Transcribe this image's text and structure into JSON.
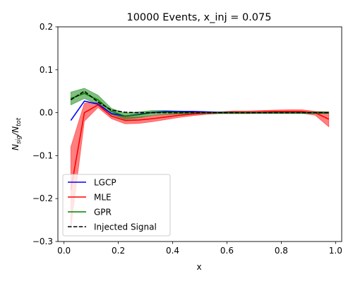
{
  "chart_data": {
    "type": "line",
    "title": "10000 Events, x_inj = 0.075",
    "xlabel": "x",
    "ylabel": {
      "base": "N",
      "sub1": "sig",
      "sep": "/N",
      "sub2": "tot"
    },
    "xlim": [
      -0.0225,
      1.0225
    ],
    "ylim": [
      -0.3,
      0.2
    ],
    "xticks": [
      0.0,
      0.2,
      0.4,
      0.6,
      0.8,
      1.0
    ],
    "xtick_labels": [
      "0.0",
      "0.2",
      "0.4",
      "0.6",
      "0.8",
      "1.0"
    ],
    "yticks": [
      -0.3,
      -0.2,
      -0.1,
      0.0,
      0.1,
      0.2
    ],
    "ytick_labels": [
      "−0.3",
      "−0.2",
      "−0.1",
      "0.0",
      "0.1",
      "0.2"
    ],
    "grid": false,
    "legend_position": "lower-left",
    "x": [
      0.025,
      0.075,
      0.125,
      0.175,
      0.225,
      0.275,
      0.325,
      0.375,
      0.425,
      0.475,
      0.525,
      0.575,
      0.625,
      0.675,
      0.725,
      0.775,
      0.825,
      0.875,
      0.925,
      0.975
    ],
    "series": [
      {
        "name": "LGCP",
        "color": "#0000ff",
        "style": "solid",
        "values": [
          -0.018,
          0.027,
          0.02,
          -0.002,
          -0.008,
          -0.004,
          0.001,
          0.003,
          0.003,
          0.003,
          0.002,
          0.001,
          0.001,
          0.0,
          0.0,
          0.0,
          0.0,
          0.0,
          0.0,
          0.0
        ]
      },
      {
        "name": "MLE",
        "color": "#ff0000",
        "style": "solid",
        "values": [
          -0.18,
          0.0,
          0.018,
          -0.008,
          -0.018,
          -0.017,
          -0.014,
          -0.01,
          -0.006,
          -0.003,
          -0.001,
          0.0,
          0.001,
          0.001,
          0.002,
          0.003,
          0.003,
          0.003,
          0.0,
          -0.015
        ],
        "band_lower": [
          -0.27,
          -0.02,
          0.012,
          -0.014,
          -0.026,
          -0.025,
          -0.021,
          -0.016,
          -0.011,
          -0.007,
          -0.004,
          -0.002,
          -0.002,
          -0.002,
          -0.001,
          -0.001,
          -0.001,
          -0.001,
          -0.006,
          -0.033
        ],
        "band_upper": [
          -0.08,
          0.022,
          0.024,
          -0.002,
          -0.01,
          -0.01,
          -0.007,
          -0.004,
          -0.001,
          0.001,
          0.002,
          0.002,
          0.004,
          0.004,
          0.005,
          0.006,
          0.007,
          0.007,
          0.003,
          0.002
        ]
      },
      {
        "name": "GPR",
        "color": "#008000",
        "style": "solid",
        "values": [
          0.033,
          0.045,
          0.03,
          0.003,
          -0.008,
          -0.005,
          0.0,
          0.001,
          0.001,
          0.0,
          0.0,
          0.0,
          0.0,
          0.0,
          0.0,
          0.0,
          0.0,
          0.0,
          0.0,
          0.0
        ],
        "band_lower": [
          0.018,
          0.033,
          0.019,
          -0.004,
          -0.015,
          -0.012,
          -0.006,
          -0.004,
          -0.003,
          -0.003,
          -0.002,
          -0.002,
          -0.002,
          -0.002,
          -0.002,
          -0.002,
          -0.002,
          -0.002,
          -0.002,
          -0.002
        ],
        "band_upper": [
          0.048,
          0.057,
          0.041,
          0.01,
          -0.001,
          0.002,
          0.005,
          0.005,
          0.004,
          0.003,
          0.002,
          0.002,
          0.002,
          0.002,
          0.002,
          0.002,
          0.002,
          0.002,
          0.002,
          0.002
        ]
      },
      {
        "name": "Injected Signal",
        "color": "#000000",
        "style": "dashed",
        "values": [
          0.03,
          0.05,
          0.025,
          0.006,
          0.001,
          0.0,
          0.0,
          0.0,
          0.0,
          0.0,
          0.0,
          0.0,
          0.0,
          0.0,
          0.0,
          0.0,
          0.0,
          0.0,
          0.0,
          0.0
        ]
      }
    ]
  }
}
